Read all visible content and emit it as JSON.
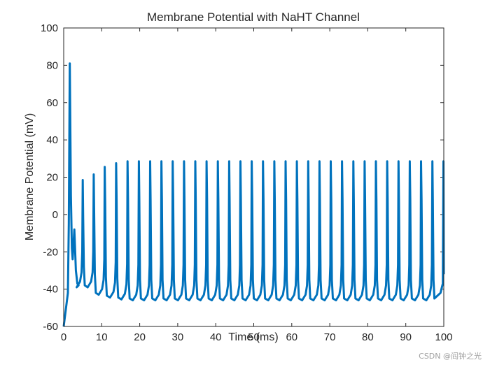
{
  "chart_data": {
    "type": "line",
    "title": "Membrane Potential with NaHT Channel",
    "xlabel": "Time (ms)",
    "ylabel": "Membrane Potential (mV)",
    "xlim": [
      0,
      100
    ],
    "ylim": [
      -60,
      100
    ],
    "xticks": [
      0,
      10,
      20,
      30,
      40,
      50,
      60,
      70,
      80,
      90,
      100
    ],
    "yticks": [
      -60,
      -40,
      -20,
      0,
      20,
      40,
      60,
      80,
      100
    ],
    "grid": false,
    "line_color": "#0072BD",
    "series": [
      {
        "name": "Membrane Potential",
        "initial_value": -60,
        "first_spike": {
          "t": 1.6,
          "peak": 81,
          "trough": -24
        },
        "secondary_bump": {
          "t": 2.8,
          "peak": -8
        },
        "spikes": [
          {
            "t": 5.0,
            "peak": 18.5,
            "trough": -38
          },
          {
            "t": 7.9,
            "peak": 21.5,
            "trough": -42
          },
          {
            "t": 10.8,
            "peak": 25.5,
            "trough": -43.5
          },
          {
            "t": 13.8,
            "peak": 27.5,
            "trough": -44.5
          }
        ],
        "periodic": {
          "start_t": 16.8,
          "period": 2.97,
          "peak": 28.5,
          "trough": -45,
          "end_t": 100,
          "end_value": -32
        }
      }
    ]
  },
  "watermark": "CSDN @阎钟之光"
}
